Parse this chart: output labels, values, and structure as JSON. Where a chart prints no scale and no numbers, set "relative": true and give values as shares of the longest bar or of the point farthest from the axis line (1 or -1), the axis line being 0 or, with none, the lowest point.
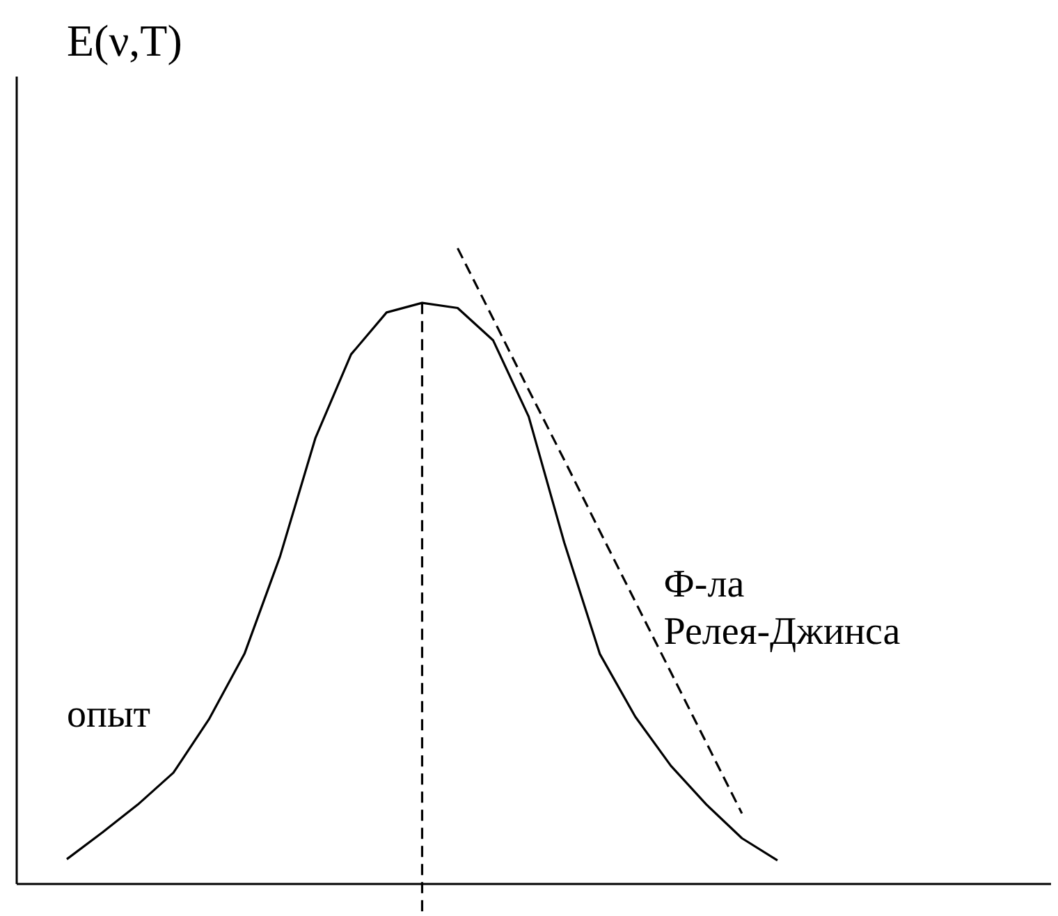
{
  "chart_data": {
    "type": "line",
    "relative": true,
    "ylabel": "E(ν,T)",
    "categories": [
      null,
      null,
      null,
      null,
      null,
      null,
      null,
      null,
      null,
      null,
      null,
      null,
      null,
      null,
      null,
      null,
      null,
      null,
      null,
      null,
      null
    ],
    "series": [
      {
        "name": "опыт",
        "color": "#000000",
        "line_style": "solid",
        "values": [
          0.039,
          0.081,
          0.125,
          0.175,
          0.259,
          0.362,
          0.515,
          0.702,
          0.833,
          0.899,
          0.914,
          0.906,
          0.855,
          0.735,
          0.537,
          0.362,
          0.263,
          0.186,
          0.125,
          0.072,
          0.037
        ]
      },
      {
        "name": "Ф-ла\nРелея-Джинса",
        "color": "#000000",
        "line_style": "dashed",
        "values": [
          null,
          null,
          null,
          null,
          null,
          null,
          null,
          null,
          null,
          null,
          null,
          1.0,
          0.889,
          0.777,
          0.667,
          0.555,
          0.444,
          0.333,
          0.222,
          0.111,
          null
        ]
      }
    ],
    "tick_labels": false,
    "grid": false,
    "marker": "none"
  }
}
